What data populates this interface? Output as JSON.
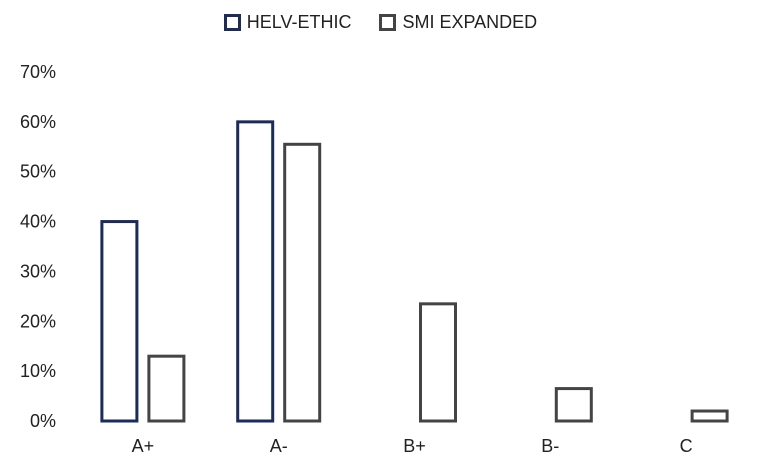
{
  "chart_data": {
    "type": "bar",
    "categories": [
      "A+",
      "A-",
      "B+",
      "B-",
      "C"
    ],
    "series": [
      {
        "name": "HELV-ETHIC",
        "color": "#1a2b5c",
        "values": [
          40,
          60,
          null,
          null,
          null
        ]
      },
      {
        "name": "SMI EXPANDED",
        "color": "#444444",
        "values": [
          13,
          55.5,
          23.5,
          6.5,
          2
        ]
      }
    ],
    "title": "",
    "xlabel": "",
    "ylabel": "",
    "ylim": [
      0,
      70
    ],
    "yticks": [
      "0%",
      "10%",
      "20%",
      "30%",
      "40%",
      "50%",
      "60%",
      "70%"
    ],
    "grid": false,
    "legend": "top-center"
  }
}
